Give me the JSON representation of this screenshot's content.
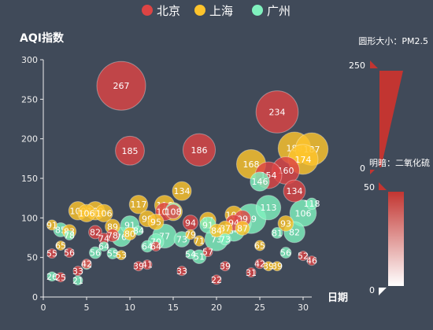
{
  "chart_data": {
    "type": "scatter",
    "title": "",
    "ylabel": "AQI指数",
    "xlabel": "日期",
    "xlim": [
      0,
      31
    ],
    "ylim": [
      0,
      300
    ],
    "x_ticks": [
      0,
      5,
      10,
      15,
      20,
      25,
      30
    ],
    "y_ticks": [
      0,
      50,
      100,
      150,
      200,
      250,
      300
    ],
    "grid": false,
    "legend_position": "top-center",
    "size_encoding": "PM2.5",
    "opacity_encoding": "SO2",
    "series": [
      {
        "name": "北京",
        "color": "#dd4444",
        "points": [
          {
            "x": 1,
            "aqi": 55,
            "pm25": 9
          },
          {
            "x": 2,
            "aqi": 25,
            "pm25": 11
          },
          {
            "x": 3,
            "aqi": 56,
            "pm25": 7
          },
          {
            "x": 4,
            "aqi": 33,
            "pm25": 7
          },
          {
            "x": 5,
            "aqi": 42,
            "pm25": 24
          },
          {
            "x": 6,
            "aqi": 82,
            "pm25": 58
          },
          {
            "x": 7,
            "aqi": 74,
            "pm25": 47
          },
          {
            "x": 8,
            "aqi": 78,
            "pm25": 55
          },
          {
            "x": 9,
            "aqi": 267,
            "pm25": 216
          },
          {
            "x": 10,
            "aqi": 185,
            "pm25": 127
          },
          {
            "x": 11,
            "aqi": 39,
            "pm25": 19
          },
          {
            "x": 12,
            "aqi": 41,
            "pm25": 11
          },
          {
            "x": 13,
            "aqi": 64,
            "pm25": 38
          },
          {
            "x": 14,
            "aqi": 108,
            "pm25": 79
          },
          {
            "x": 15,
            "aqi": 108,
            "pm25": 63
          },
          {
            "x": 16,
            "aqi": 33,
            "pm25": 6
          },
          {
            "x": 17,
            "aqi": 94,
            "pm25": 66
          },
          {
            "x": 18,
            "aqi": 186,
            "pm25": 142
          },
          {
            "x": 19,
            "aqi": 57,
            "pm25": 31
          },
          {
            "x": 20,
            "aqi": 22,
            "pm25": 8
          },
          {
            "x": 21,
            "aqi": 39,
            "pm25": 15
          },
          {
            "x": 22,
            "aqi": 94,
            "pm25": 69
          },
          {
            "x": 23,
            "aqi": 99,
            "pm25": 73
          },
          {
            "x": 24,
            "aqi": 31,
            "pm25": 12
          },
          {
            "x": 25,
            "aqi": 42,
            "pm25": 27
          },
          {
            "x": 26,
            "aqi": 154,
            "pm25": 117
          },
          {
            "x": 27,
            "aqi": 234,
            "pm25": 185
          },
          {
            "x": 28,
            "aqi": 160,
            "pm25": 120
          },
          {
            "x": 29,
            "aqi": 134,
            "pm25": 96
          },
          {
            "x": 30,
            "aqi": 52,
            "pm25": 24
          },
          {
            "x": 31,
            "aqi": 46,
            "pm25": 5
          }
        ]
      },
      {
        "name": "上海",
        "color": "#fec42c",
        "points": [
          {
            "x": 1,
            "aqi": 91,
            "pm25": 45
          },
          {
            "x": 2,
            "aqi": 65,
            "pm25": 27
          },
          {
            "x": 3,
            "aqi": 83,
            "pm25": 60
          },
          {
            "x": 4,
            "aqi": 109,
            "pm25": 81
          },
          {
            "x": 5,
            "aqi": 106,
            "pm25": 77
          },
          {
            "x": 6,
            "aqi": 109,
            "pm25": 81
          },
          {
            "x": 7,
            "aqi": 106,
            "pm25": 77
          },
          {
            "x": 8,
            "aqi": 89,
            "pm25": 65
          },
          {
            "x": 9,
            "aqi": 53,
            "pm25": 33
          },
          {
            "x": 10,
            "aqi": 80,
            "pm25": 55
          },
          {
            "x": 11,
            "aqi": 117,
            "pm25": 81
          },
          {
            "x": 12,
            "aqi": 99,
            "pm25": 71
          },
          {
            "x": 13,
            "aqi": 95,
            "pm25": 69
          },
          {
            "x": 14,
            "aqi": 116,
            "pm25": 87
          },
          {
            "x": 15,
            "aqi": 108,
            "pm25": 80
          },
          {
            "x": 16,
            "aqi": 134,
            "pm25": 83
          },
          {
            "x": 17,
            "aqi": 79,
            "pm25": 43
          },
          {
            "x": 18,
            "aqi": 71,
            "pm25": 46
          },
          {
            "x": 19,
            "aqi": 97,
            "pm25": 71
          },
          {
            "x": 20,
            "aqi": 84,
            "pm25": 57
          },
          {
            "x": 21,
            "aqi": 87,
            "pm25": 63
          },
          {
            "x": 22,
            "aqi": 104,
            "pm25": 77
          },
          {
            "x": 23,
            "aqi": 87,
            "pm25": 62
          },
          {
            "x": 24,
            "aqi": 168,
            "pm25": 128
          },
          {
            "x": 25,
            "aqi": 65,
            "pm25": 45
          },
          {
            "x": 26,
            "aqi": 39,
            "pm25": 24
          },
          {
            "x": 27,
            "aqi": 39,
            "pm25": 24
          },
          {
            "x": 28,
            "aqi": 93,
            "pm25": 68
          },
          {
            "x": 29,
            "aqi": 188,
            "pm25": 143
          },
          {
            "x": 30,
            "aqi": 174,
            "pm25": 131
          },
          {
            "x": 31,
            "aqi": 187,
            "pm25": 143
          }
        ]
      },
      {
        "name": "广州",
        "color": "#80f1be",
        "points": [
          {
            "x": 1,
            "aqi": 26,
            "pm25": 37
          },
          {
            "x": 2,
            "aqi": 85,
            "pm25": 62
          },
          {
            "x": 3,
            "aqi": 78,
            "pm25": 38
          },
          {
            "x": 4,
            "aqi": 21,
            "pm25": 21
          },
          {
            "x": 5,
            "aqi": 41,
            "pm25": 42
          },
          {
            "x": 6,
            "aqi": 56,
            "pm25": 52
          },
          {
            "x": 7,
            "aqi": 64,
            "pm25": 30
          },
          {
            "x": 8,
            "aqi": 55,
            "pm25": 48
          },
          {
            "x": 9,
            "aqi": 76,
            "pm25": 85
          },
          {
            "x": 10,
            "aqi": 91,
            "pm25": 81
          },
          {
            "x": 11,
            "aqi": 84,
            "pm25": 39
          },
          {
            "x": 12,
            "aqi": 64,
            "pm25": 51
          },
          {
            "x": 13,
            "aqi": 70,
            "pm25": 69
          },
          {
            "x": 14,
            "aqi": 77,
            "pm25": 105
          },
          {
            "x": 15,
            "aqi": 109,
            "pm25": 68
          },
          {
            "x": 16,
            "aqi": 73,
            "pm25": 68
          },
          {
            "x": 17,
            "aqi": 54,
            "pm25": 27
          },
          {
            "x": 18,
            "aqi": 51,
            "pm25": 61
          },
          {
            "x": 19,
            "aqi": 91,
            "pm25": 71
          },
          {
            "x": 20,
            "aqi": 73,
            "pm25": 102
          },
          {
            "x": 21,
            "aqi": 73,
            "pm25": 50
          },
          {
            "x": 22,
            "aqi": 84,
            "pm25": 94
          },
          {
            "x": 23,
            "aqi": 93,
            "pm25": 77
          },
          {
            "x": 24,
            "aqi": 99,
            "pm25": 130
          },
          {
            "x": 25,
            "aqi": 146,
            "pm25": 84
          },
          {
            "x": 26,
            "aqi": 113,
            "pm25": 108
          },
          {
            "x": 27,
            "aqi": 81,
            "pm25": 48
          },
          {
            "x": 28,
            "aqi": 56,
            "pm25": 48
          },
          {
            "x": 29,
            "aqi": 82,
            "pm25": 92
          },
          {
            "x": 30,
            "aqi": 106,
            "pm25": 116
          },
          {
            "x": 31,
            "aqi": 118,
            "pm25": 50
          }
        ]
      }
    ]
  },
  "visual_map_size": {
    "title": "圆形大小：PM2.5",
    "max_label": "250",
    "min_label": "0",
    "color": "#c23531"
  },
  "visual_map_opacity": {
    "title": "明暗：二氧化硫",
    "max_label": "50",
    "min_label": "0",
    "color": "#c23531"
  },
  "colors": {
    "background": "#404a59",
    "axis": "#eeeeee",
    "text": "#ffffff"
  }
}
